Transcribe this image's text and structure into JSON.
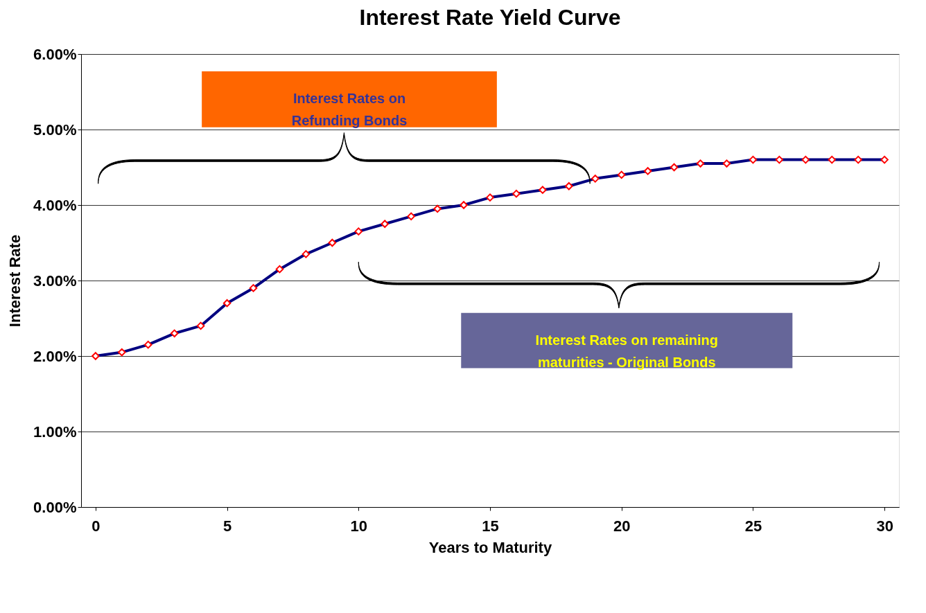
{
  "chart_data": {
    "type": "line",
    "title": "Interest Rate Yield Curve",
    "xlabel": "Years to Maturity",
    "ylabel": "Interest Rate",
    "categories": [
      "0",
      null,
      null,
      null,
      null,
      "5",
      null,
      null,
      null,
      null,
      "10",
      null,
      null,
      null,
      null,
      "15",
      null,
      null,
      null,
      null,
      "20",
      null,
      null,
      null,
      null,
      "25",
      null,
      null,
      null,
      null,
      "30"
    ],
    "series": [
      {
        "color": "#000080",
        "values": [
          2.0,
          2.05,
          2.15,
          2.3,
          2.4,
          2.7,
          2.9,
          3.15,
          3.35,
          3.5,
          3.65,
          3.75,
          3.85,
          3.95,
          4.0,
          4.1,
          4.15,
          4.2,
          4.25,
          4.35,
          4.4,
          4.45,
          4.5,
          4.55,
          4.55,
          4.6,
          4.6,
          4.6,
          4.6,
          4.6,
          4.6
        ]
      }
    ],
    "ylim": [
      0,
      6
    ],
    "yticks": [
      {
        "value": 0,
        "label": "0.00%"
      },
      {
        "value": 1,
        "label": "1.00%"
      },
      {
        "value": 2,
        "label": "2.00%"
      },
      {
        "value": 3,
        "label": "3.00%"
      },
      {
        "value": 4,
        "label": "4.00%"
      },
      {
        "value": 5,
        "label": "5.00%"
      },
      {
        "value": 6,
        "label": "6.00%"
      }
    ],
    "grid": "y",
    "marker": "diamond",
    "line_style": "solid",
    "annotations": [
      "Interest Rates on Refunding Bonds",
      "Interest Rates on remaining maturities - Original Bonds"
    ]
  }
}
